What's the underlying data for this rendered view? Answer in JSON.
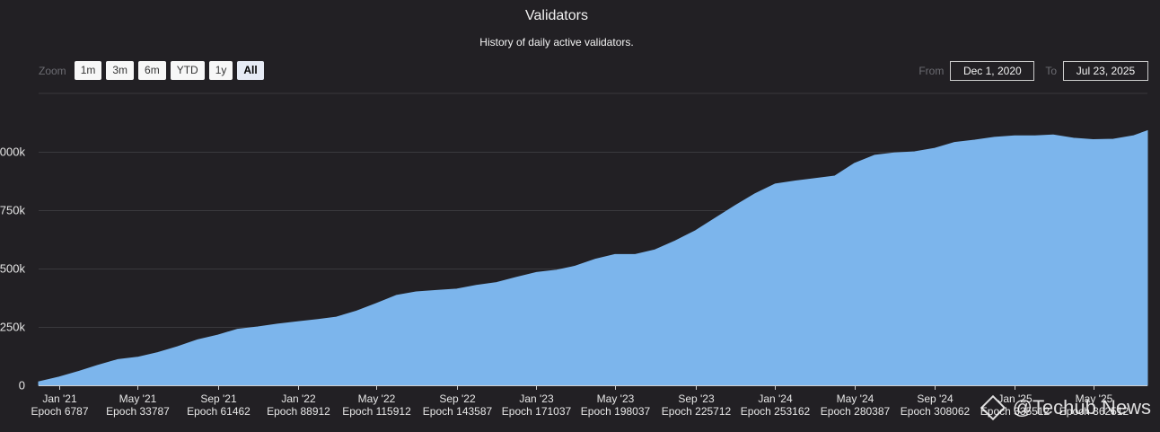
{
  "chart_data": {
    "type": "area",
    "title": "Validators",
    "subtitle": "History of daily active validators.",
    "series": [
      {
        "color": "#7cb5ec",
        "x": [
          "2020-12-01",
          "2021-01-01",
          "2021-02-01",
          "2021-03-01",
          "2021-04-01",
          "2021-05-01",
          "2021-06-01",
          "2021-07-01",
          "2021-08-01",
          "2021-09-01",
          "2021-10-01",
          "2021-11-01",
          "2021-12-01",
          "2022-01-01",
          "2022-02-01",
          "2022-03-01",
          "2022-04-01",
          "2022-05-01",
          "2022-06-01",
          "2022-07-01",
          "2022-08-01",
          "2022-09-01",
          "2022-10-01",
          "2022-11-01",
          "2022-12-01",
          "2023-01-01",
          "2023-02-01",
          "2023-03-01",
          "2023-04-01",
          "2023-05-01",
          "2023-06-01",
          "2023-07-01",
          "2023-08-01",
          "2023-09-01",
          "2023-10-01",
          "2023-11-01",
          "2023-12-01",
          "2024-01-01",
          "2024-02-01",
          "2024-03-01",
          "2024-04-01",
          "2024-05-01",
          "2024-06-01",
          "2024-07-01",
          "2024-08-01",
          "2024-09-01",
          "2024-10-01",
          "2024-11-01",
          "2024-12-01",
          "2025-01-01",
          "2025-02-01",
          "2025-03-01",
          "2025-04-01",
          "2025-05-01",
          "2025-06-01",
          "2025-07-01",
          "2025-07-23"
        ],
        "values": [
          15000,
          35000,
          60000,
          85000,
          110000,
          120000,
          140000,
          165000,
          195000,
          215000,
          240000,
          250000,
          262000,
          272000,
          282000,
          292000,
          318000,
          350000,
          385000,
          400000,
          406000,
          412000,
          428000,
          440000,
          462000,
          483000,
          493000,
          510000,
          540000,
          560000,
          560000,
          580000,
          618000,
          662000,
          715000,
          770000,
          820000,
          862000,
          875000,
          885000,
          896000,
          950000,
          985000,
          995000,
          1000000,
          1015000,
          1040000,
          1050000,
          1062000,
          1068000,
          1068000,
          1072000,
          1058000,
          1052000,
          1054000,
          1068000,
          1090000
        ]
      }
    ],
    "ylim": [
      0,
      1250000
    ],
    "yticks": [
      0,
      250000,
      500000,
      750000,
      1000000
    ],
    "ytick_labels": [
      "0",
      "250k",
      "500k",
      "750k",
      "1000k"
    ],
    "xticks": [
      {
        "date": "2021-01-01",
        "label": "Jan '21",
        "epoch": "Epoch 6787"
      },
      {
        "date": "2021-05-01",
        "label": "May '21",
        "epoch": "Epoch 33787"
      },
      {
        "date": "2021-09-01",
        "label": "Sep '21",
        "epoch": "Epoch 61462"
      },
      {
        "date": "2022-01-01",
        "label": "Jan '22",
        "epoch": "Epoch 88912"
      },
      {
        "date": "2022-05-01",
        "label": "May '22",
        "epoch": "Epoch 115912"
      },
      {
        "date": "2022-09-01",
        "label": "Sep '22",
        "epoch": "Epoch 143587"
      },
      {
        "date": "2023-01-01",
        "label": "Jan '23",
        "epoch": "Epoch 171037"
      },
      {
        "date": "2023-05-01",
        "label": "May '23",
        "epoch": "Epoch 198037"
      },
      {
        "date": "2023-09-01",
        "label": "Sep '23",
        "epoch": "Epoch 225712"
      },
      {
        "date": "2024-01-01",
        "label": "Jan '24",
        "epoch": "Epoch 253162"
      },
      {
        "date": "2024-05-01",
        "label": "May '24",
        "epoch": "Epoch 280387"
      },
      {
        "date": "2024-09-01",
        "label": "Sep '24",
        "epoch": "Epoch 308062"
      },
      {
        "date": "2025-01-01",
        "label": "Jan '25",
        "epoch": "Epoch 335512"
      },
      {
        "date": "2025-05-01",
        "label": "May '25",
        "epoch": "Epoch 362512"
      }
    ],
    "xrange": [
      "2020-12-01",
      "2025-07-23"
    ],
    "grid": true,
    "legend": "none"
  },
  "zoom": {
    "label": "Zoom",
    "buttons": [
      "1m",
      "3m",
      "6m",
      "YTD",
      "1y",
      "All"
    ],
    "active": "All"
  },
  "range": {
    "from_label": "From",
    "from_value": "Dec 1, 2020",
    "to_label": "To",
    "to_value": "Jul 23, 2025"
  },
  "watermark": {
    "text": "@Techub News"
  }
}
